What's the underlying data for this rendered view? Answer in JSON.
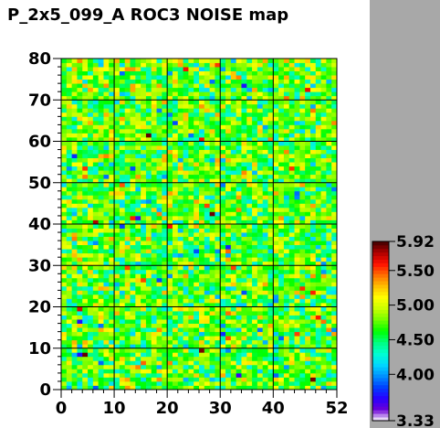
{
  "chart_data": {
    "type": "heatmap",
    "title": "P_2x5_099_A ROC3 NOISE map",
    "xlabel": "",
    "ylabel": "",
    "xlim": [
      0,
      52
    ],
    "ylim": [
      0,
      80
    ],
    "x_ticks": [
      "0",
      "10",
      "20",
      "30",
      "40",
      "52"
    ],
    "y_ticks": [
      "0",
      "10",
      "20",
      "30",
      "40",
      "50",
      "60",
      "70",
      "80"
    ],
    "y_tick_values": [
      0,
      10,
      20,
      30,
      40,
      50,
      60,
      70,
      80
    ],
    "x_tick_values": [
      0,
      10,
      20,
      30,
      40,
      52
    ],
    "n_cols": 52,
    "n_rows": 80,
    "grid": true,
    "grid_x_values": [
      10,
      20,
      30,
      40
    ],
    "grid_y_values": [
      10,
      20,
      30,
      40,
      50,
      60,
      70
    ],
    "zlim": [
      3.33,
      5.92
    ],
    "z_ticks": [
      "5.92",
      "5.50",
      "5.00",
      "4.50",
      "4.00",
      "3.33"
    ],
    "z_tick_values": [
      5.92,
      5.5,
      5.0,
      4.5,
      4.0,
      3.33
    ],
    "legend": "right colorbar",
    "colormap": [
      "#ffffff",
      "#6b00d6",
      "#2800ff",
      "#0040ff",
      "#0090ff",
      "#00d8ff",
      "#00ffd0",
      "#00ff80",
      "#00ff00",
      "#70ff00",
      "#c8ff00",
      "#ffff00",
      "#ffc000",
      "#ff7000",
      "#ff1000",
      "#b00000",
      "#400000"
    ],
    "value_distribution": {
      "mean": 4.72,
      "spread": 0.28,
      "seed": 99
    }
  }
}
